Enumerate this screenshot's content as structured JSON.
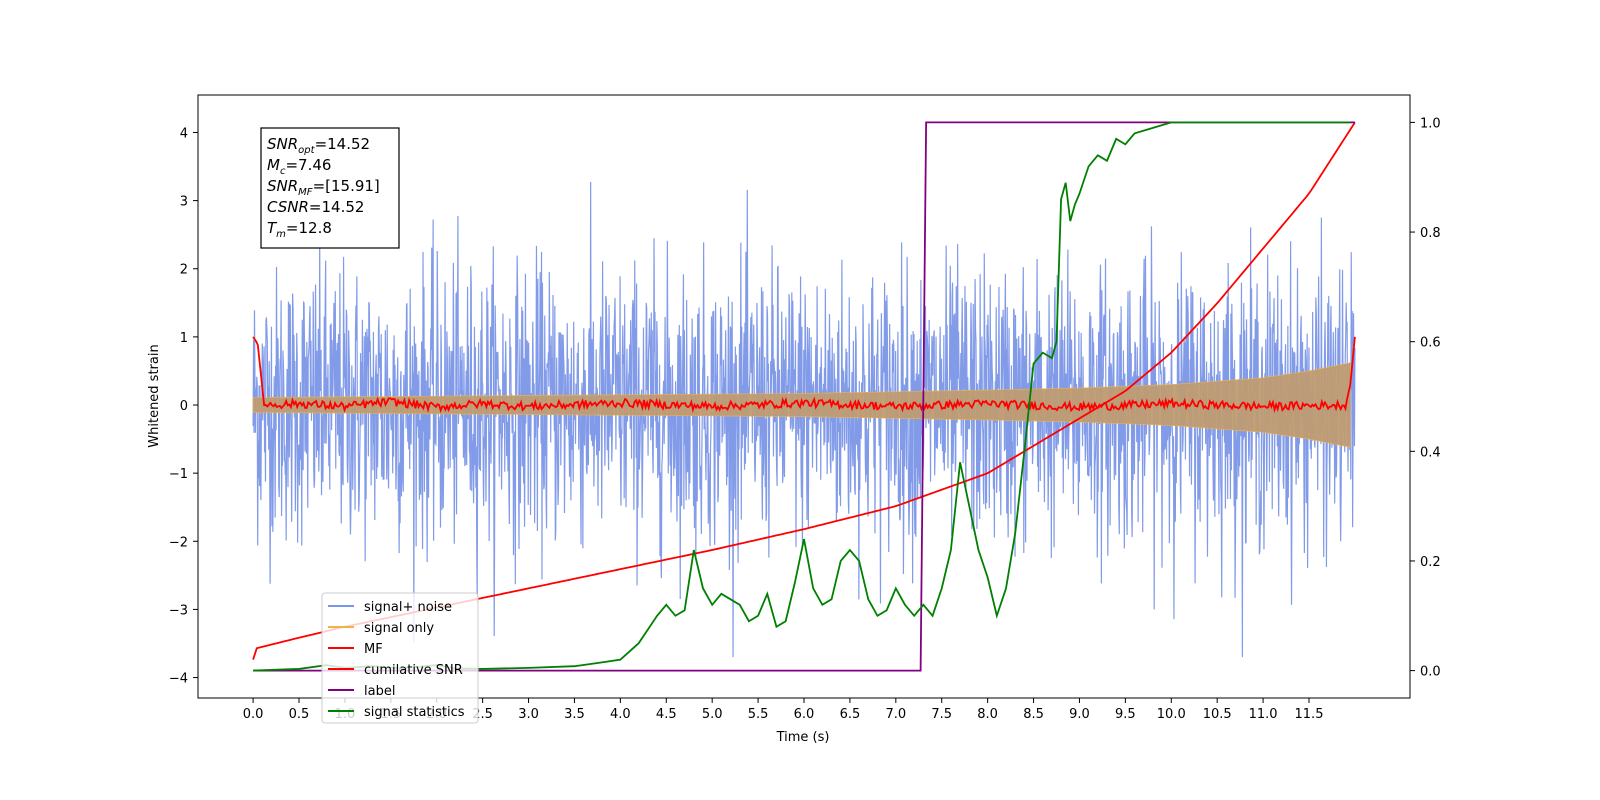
{
  "chart_data": {
    "type": "line",
    "xlabel": "Time (s)",
    "ylabel": "Whitened strain",
    "xlim": [
      -0.6,
      12.6
    ],
    "ylim_left": [
      -4.3,
      4.55
    ],
    "ylim_right": [
      -0.05,
      1.05
    ],
    "x_ticks": [
      0.0,
      0.5,
      1.0,
      1.5,
      2.0,
      2.5,
      3.0,
      3.5,
      4.0,
      4.5,
      5.0,
      5.5,
      6.0,
      6.5,
      7.0,
      7.5,
      8.0,
      8.5,
      9.0,
      9.5,
      10.0,
      10.5,
      11.0,
      11.5
    ],
    "x_tick_labels": [
      "0.0",
      "0.5",
      "1.0",
      "1.5",
      "2.0",
      "2.5",
      "3.0",
      "3.5",
      "4.0",
      "4.5",
      "5.0",
      "5.5",
      "6.0",
      "6.5",
      "7.0",
      "7.5",
      "8.0",
      "8.5",
      "9.0",
      "9.5",
      "10.0",
      "10.5",
      "11.0",
      "11.5"
    ],
    "y_ticks_left": [
      4,
      3,
      2,
      1,
      0,
      -1,
      -2,
      -3,
      -4
    ],
    "y_tick_labels_left": [
      "4",
      "3",
      "2",
      "1",
      "0",
      "−1",
      "−2",
      "−3",
      "−4"
    ],
    "y_ticks_right": [
      1.0,
      0.8,
      0.6,
      0.4,
      0.2,
      0.0
    ],
    "y_tick_labels_right": [
      "1.0",
      "0.8",
      "0.6",
      "0.4",
      "0.2",
      "0.0"
    ],
    "legend_position": "lower-left",
    "info_box": [
      {
        "sym": "SNR",
        "sub": "opt",
        "val": "=14.52"
      },
      {
        "sym": "M",
        "sub": "c",
        "val": "=7.46"
      },
      {
        "sym": "SNR",
        "sub": "MF",
        "val": "=[15.91]"
      },
      {
        "sym": "CSNR",
        "sub": "",
        "val": "=14.52"
      },
      {
        "sym": "T",
        "sub": "m",
        "val": "=12.8"
      }
    ],
    "series": [
      {
        "name": "signal+ noise",
        "axis": "left",
        "color": "#7b96e8",
        "style": "noise",
        "x_range": [
          0.0,
          12.0
        ],
        "typical_amplitude": 1.0,
        "max_positive": 4.2,
        "min_negative": -3.7
      },
      {
        "name": "signal only",
        "axis": "left",
        "color": "#f0b24a",
        "style": "envelope",
        "x": [
          0.0,
          2.0,
          4.0,
          6.0,
          8.0,
          9.0,
          10.0,
          11.0,
          11.5,
          11.95
        ],
        "amplitude": [
          0.11,
          0.13,
          0.15,
          0.17,
          0.22,
          0.25,
          0.3,
          0.4,
          0.5,
          0.62
        ]
      },
      {
        "name": "MF",
        "axis": "left",
        "color": "#ff0000",
        "style": "line",
        "x": [
          0.0,
          0.05,
          0.12,
          0.5,
          1.0,
          1.5,
          2.0,
          2.5,
          3.0,
          4.0,
          5.0,
          6.0,
          7.0,
          8.0,
          9.0,
          10.0,
          11.0,
          11.9,
          11.95,
          12.0
        ],
        "y": [
          1.0,
          0.9,
          0.0,
          0.02,
          -0.02,
          0.05,
          -0.03,
          0.02,
          -0.02,
          0.03,
          -0.02,
          0.03,
          -0.02,
          0.02,
          -0.03,
          0.02,
          -0.02,
          0.0,
          0.3,
          1.0
        ],
        "jitter": 0.06
      },
      {
        "name": "cumilative SNR",
        "axis": "right",
        "color": "#ff0000",
        "style": "line",
        "x": [
          0.0,
          0.02,
          0.5,
          1.0,
          2.0,
          3.0,
          4.0,
          5.0,
          6.0,
          7.0,
          8.0,
          9.0,
          9.5,
          10.0,
          10.5,
          11.0,
          11.5,
          12.0
        ],
        "y": [
          0.02,
          0.04,
          0.06,
          0.08,
          0.115,
          0.15,
          0.185,
          0.22,
          0.258,
          0.3,
          0.36,
          0.46,
          0.51,
          0.58,
          0.67,
          0.77,
          0.87,
          1.0
        ]
      },
      {
        "name": "label",
        "axis": "right",
        "color": "#800080",
        "style": "line",
        "x": [
          0.0,
          7.27,
          7.33,
          12.0
        ],
        "y": [
          0.0,
          0.0,
          1.0,
          1.0
        ]
      },
      {
        "name": "signal statistics",
        "axis": "right",
        "color": "#008000",
        "style": "line",
        "x": [
          0.0,
          0.5,
          0.8,
          1.0,
          1.3,
          1.6,
          2.0,
          2.2,
          2.5,
          3.0,
          3.5,
          3.8,
          4.0,
          4.2,
          4.4,
          4.5,
          4.6,
          4.7,
          4.8,
          4.9,
          5.0,
          5.1,
          5.2,
          5.3,
          5.4,
          5.5,
          5.6,
          5.7,
          5.8,
          5.9,
          6.0,
          6.1,
          6.2,
          6.3,
          6.4,
          6.5,
          6.6,
          6.7,
          6.8,
          6.9,
          7.0,
          7.1,
          7.2,
          7.3,
          7.4,
          7.5,
          7.6,
          7.7,
          7.8,
          7.9,
          8.0,
          8.1,
          8.2,
          8.3,
          8.4,
          8.5,
          8.6,
          8.7,
          8.75,
          8.8,
          8.85,
          8.9,
          8.95,
          9.0,
          9.1,
          9.2,
          9.3,
          9.4,
          9.5,
          9.6,
          9.7,
          9.8,
          9.9,
          10.0,
          10.2,
          10.5,
          11.0,
          11.5,
          11.95
        ],
        "y": [
          0.0,
          0.003,
          0.01,
          0.005,
          0.008,
          0.004,
          0.01,
          0.004,
          0.003,
          0.005,
          0.008,
          0.015,
          0.02,
          0.05,
          0.1,
          0.12,
          0.1,
          0.11,
          0.22,
          0.15,
          0.12,
          0.14,
          0.13,
          0.12,
          0.09,
          0.1,
          0.14,
          0.08,
          0.09,
          0.16,
          0.24,
          0.15,
          0.12,
          0.13,
          0.2,
          0.22,
          0.2,
          0.13,
          0.1,
          0.11,
          0.15,
          0.12,
          0.1,
          0.12,
          0.1,
          0.15,
          0.22,
          0.38,
          0.3,
          0.22,
          0.17,
          0.1,
          0.15,
          0.25,
          0.4,
          0.56,
          0.58,
          0.57,
          0.6,
          0.86,
          0.89,
          0.82,
          0.85,
          0.87,
          0.92,
          0.94,
          0.93,
          0.97,
          0.96,
          0.98,
          0.985,
          0.99,
          0.995,
          1.0,
          1.0,
          1.0,
          1.0,
          1.0,
          1.0
        ]
      }
    ]
  }
}
